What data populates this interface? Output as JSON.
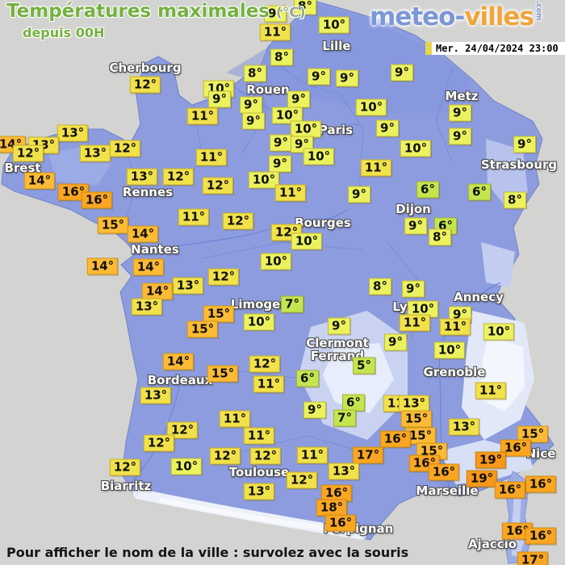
{
  "header": {
    "title": "Températures maximales",
    "title_unit": "(°C)",
    "subtitle": "depuis 00H",
    "logo": {
      "part1": "meteo-",
      "part2": "villes",
      "suffix": ".com"
    },
    "datetime": "Mer. 24/04/2024 23:00"
  },
  "footer": {
    "hint": "Pour afficher le nom de la ville : survolez avec la souris"
  },
  "colors": {
    "temp_green": "#c3e64f",
    "temp_yellow": "#ebf25e",
    "temp_gold": "#f1e14a",
    "temp_orange_light": "#fcba35",
    "temp_orange": "#faa622",
    "temp_orange_deep": "#f8981a",
    "title_green": "#74b13f",
    "unit_green": "#97a888",
    "logo_blue": "#7b97d6",
    "logo_orange": "#f0a43a",
    "sea_gray": "#d3d3d1"
  },
  "map": {
    "city_labels": {
      "columns": [
        "name",
        "x",
        "y"
      ],
      "rows": [
        [
          "Cherbourg",
          180,
          84
        ],
        [
          "Lille",
          417,
          57
        ],
        [
          "Rouen",
          332,
          111
        ],
        [
          "Paris",
          416,
          161
        ],
        [
          "Metz",
          572,
          119
        ],
        [
          "Strasbourg",
          643,
          204
        ],
        [
          "Brest",
          28,
          208
        ],
        [
          "Rennes",
          183,
          238
        ],
        [
          "Nantes",
          192,
          309
        ],
        [
          "Bourges",
          400,
          276
        ],
        [
          "Dijon",
          512,
          259
        ],
        [
          "Limoges",
          321,
          377
        ],
        [
          "Lyon",
          506,
          380
        ],
        [
          "Annecy",
          593,
          368
        ],
        [
          "Clermont\nFerrand",
          418,
          433
        ],
        [
          "Grenoble",
          563,
          461
        ],
        [
          "Bordeaux",
          223,
          471
        ],
        [
          "Toulouse",
          321,
          585
        ],
        [
          "Biarritz",
          156,
          602
        ],
        [
          "Marseille",
          554,
          608
        ],
        [
          "Nice",
          670,
          562
        ],
        [
          "Perpignan",
          444,
          655
        ],
        [
          "Ajaccio",
          610,
          674
        ]
      ]
    },
    "temp_labels": {
      "columns": [
        "temp_c",
        "x",
        "y"
      ],
      "rows": [
        [
          8,
          378,
          8
        ],
        [
          9,
          341,
          17
        ],
        [
          10,
          414,
          31
        ],
        [
          11,
          341,
          40
        ],
        [
          8,
          349,
          71
        ],
        [
          8,
          316,
          91
        ],
        [
          9,
          395,
          95
        ],
        [
          9,
          430,
          97
        ],
        [
          9,
          498,
          90
        ],
        [
          12,
          180,
          105
        ],
        [
          10,
          271,
          110
        ],
        [
          9,
          272,
          123
        ],
        [
          9,
          311,
          130
        ],
        [
          9,
          370,
          123
        ],
        [
          10,
          460,
          133
        ],
        [
          9,
          570,
          140
        ],
        [
          11,
          251,
          144
        ],
        [
          10,
          356,
          143
        ],
        [
          9,
          314,
          150
        ],
        [
          10,
          379,
          160
        ],
        [
          9,
          480,
          159
        ],
        [
          9,
          570,
          169
        ],
        [
          13,
          90,
          165
        ],
        [
          14,
          13,
          179
        ],
        [
          13,
          54,
          180
        ],
        [
          12,
          35,
          190
        ],
        [
          13,
          118,
          190
        ],
        [
          12,
          155,
          184
        ],
        [
          9,
          348,
          177
        ],
        [
          9,
          374,
          179
        ],
        [
          9,
          650,
          179
        ],
        [
          10,
          395,
          194
        ],
        [
          11,
          262,
          195
        ],
        [
          9,
          347,
          203
        ],
        [
          10,
          515,
          184
        ],
        [
          11,
          466,
          208
        ],
        [
          13,
          176,
          219
        ],
        [
          12,
          221,
          219
        ],
        [
          14,
          49,
          224
        ],
        [
          10,
          327,
          223
        ],
        [
          12,
          270,
          230
        ],
        [
          6,
          530,
          235
        ],
        [
          6,
          594,
          238
        ],
        [
          16,
          91,
          238
        ],
        [
          11,
          360,
          239
        ],
        [
          9,
          445,
          241
        ],
        [
          16,
          120,
          248
        ],
        [
          8,
          638,
          248
        ],
        [
          11,
          240,
          269
        ],
        [
          12,
          295,
          274
        ],
        [
          15,
          140,
          279
        ],
        [
          9,
          515,
          280
        ],
        [
          6,
          552,
          280
        ],
        [
          12,
          355,
          288
        ],
        [
          14,
          177,
          290
        ],
        [
          8,
          545,
          294
        ],
        [
          10,
          380,
          299
        ],
        [
          12,
          277,
          343
        ],
        [
          10,
          342,
          324
        ],
        [
          14,
          127,
          330
        ],
        [
          14,
          184,
          331
        ],
        [
          13,
          233,
          354
        ],
        [
          8,
          471,
          355
        ],
        [
          9,
          512,
          358
        ],
        [
          14,
          195,
          361
        ],
        [
          7,
          362,
          377
        ],
        [
          13,
          182,
          380
        ],
        [
          10,
          524,
          383
        ],
        [
          15,
          271,
          389
        ],
        [
          9,
          570,
          390
        ],
        [
          10,
          321,
          399
        ],
        [
          11,
          514,
          400
        ],
        [
          9,
          420,
          404
        ],
        [
          11,
          564,
          405
        ],
        [
          15,
          251,
          408
        ],
        [
          10,
          618,
          411
        ],
        [
          9,
          490,
          424
        ],
        [
          10,
          557,
          434
        ],
        [
          14,
          221,
          448
        ],
        [
          12,
          328,
          451
        ],
        [
          5,
          451,
          453
        ],
        [
          15,
          276,
          463
        ],
        [
          6,
          381,
          469
        ],
        [
          11,
          333,
          476
        ],
        [
          11,
          608,
          484
        ],
        [
          13,
          193,
          490
        ],
        [
          11,
          494,
          500
        ],
        [
          13,
          513,
          500
        ],
        [
          6,
          438,
          499
        ],
        [
          9,
          390,
          508
        ],
        [
          7,
          427,
          518
        ],
        [
          15,
          516,
          519
        ],
        [
          11,
          291,
          519
        ],
        [
          13,
          575,
          529
        ],
        [
          12,
          226,
          533
        ],
        [
          15,
          660,
          538
        ],
        [
          11,
          321,
          540
        ],
        [
          15,
          521,
          540
        ],
        [
          16,
          490,
          544
        ],
        [
          12,
          197,
          549
        ],
        [
          16,
          639,
          555
        ],
        [
          15,
          535,
          559
        ],
        [
          11,
          387,
          564
        ],
        [
          17,
          456,
          564
        ],
        [
          12,
          279,
          565
        ],
        [
          12,
          329,
          565
        ],
        [
          19,
          608,
          570
        ],
        [
          16,
          526,
          574
        ],
        [
          10,
          231,
          578
        ],
        [
          12,
          155,
          579
        ],
        [
          13,
          426,
          584
        ],
        [
          16,
          550,
          585
        ],
        [
          19,
          597,
          593
        ],
        [
          12,
          374,
          595
        ],
        [
          16,
          670,
          600
        ],
        [
          16,
          632,
          607
        ],
        [
          13,
          321,
          609
        ],
        [
          16,
          417,
          611
        ],
        [
          18,
          411,
          629
        ],
        [
          16,
          422,
          648
        ],
        [
          16,
          641,
          658
        ],
        [
          16,
          670,
          664
        ],
        [
          17,
          660,
          694
        ]
      ]
    }
  }
}
